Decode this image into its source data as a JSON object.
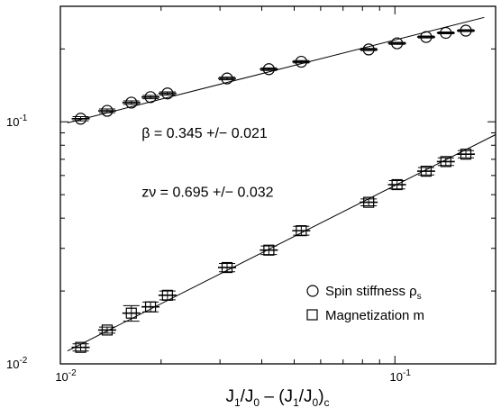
{
  "chart_data": {
    "type": "scatter",
    "x_scale": "log",
    "y_scale": "log",
    "xlim": [
      0.01,
      0.2
    ],
    "ylim": [
      0.01,
      0.3
    ],
    "grid": false,
    "legend_position": "bottom-right",
    "xlabel": {
      "parts": [
        {
          "t": "J"
        },
        {
          "t": "1",
          "sub": true
        },
        {
          "t": "/J"
        },
        {
          "t": "0",
          "sub": true
        },
        {
          "t": " – (J"
        },
        {
          "t": "1",
          "sub": true
        },
        {
          "t": "/J"
        },
        {
          "t": "0",
          "sub": true
        },
        {
          "t": ")"
        },
        {
          "t": "c",
          "sub": true
        }
      ]
    },
    "x_ticks": [
      {
        "value": 0.01,
        "base": "10",
        "exp": "-2"
      },
      {
        "value": 0.1,
        "base": "10",
        "exp": "-1"
      }
    ],
    "y_ticks": [
      {
        "value": 0.01,
        "base": "10",
        "exp": "-2"
      },
      {
        "value": 0.1,
        "base": "10",
        "exp": "-1"
      }
    ],
    "annotations": [
      {
        "id": "beta",
        "text": "β = 0.345 +/− 0.021",
        "x": 0.0175,
        "y": 0.086
      },
      {
        "id": "znu",
        "text": "zν = 0.695 +/− 0.032",
        "x": 0.0175,
        "y": 0.049
      }
    ],
    "series": [
      {
        "name": "Spin stiffness ρ",
        "name_sub": "s",
        "marker": "circle",
        "x": [
          0.0115,
          0.0138,
          0.0163,
          0.0186,
          0.0209,
          0.0315,
          0.042,
          0.0525,
          0.0835,
          0.1015,
          0.124,
          0.142,
          0.163
        ],
        "y": [
          0.103,
          0.111,
          0.12,
          0.1265,
          0.131,
          0.151,
          0.165,
          0.177,
          0.199,
          0.211,
          0.224,
          0.233,
          0.238
        ],
        "err": [
          0.002,
          0.002,
          0.002,
          0.002,
          0.002,
          0.002,
          0.002,
          0.002,
          0.002,
          0.002,
          0.002,
          0.002,
          0.002
        ],
        "fit": {
          "x": [
            0.0105,
            0.185
          ],
          "y": [
            0.099,
            0.27
          ]
        }
      },
      {
        "name": "Magnetization m",
        "marker": "square",
        "x": [
          0.0115,
          0.0138,
          0.0163,
          0.0186,
          0.0209,
          0.0315,
          0.042,
          0.0525,
          0.0835,
          0.1015,
          0.124,
          0.142,
          0.163
        ],
        "y": [
          0.0117,
          0.0138,
          0.0162,
          0.0172,
          0.0192,
          0.025,
          0.0295,
          0.0355,
          0.0465,
          0.055,
          0.0625,
          0.0685,
          0.0735
        ],
        "err": [
          0.0004,
          0.0004,
          0.0012,
          0.0008,
          0.0008,
          0.001,
          0.0012,
          0.0015,
          0.0015,
          0.0022,
          0.0022,
          0.0025,
          0.0025
        ],
        "fit": {
          "x": [
            0.0105,
            0.2
          ],
          "y": [
            0.0113,
            0.0885
          ]
        }
      }
    ]
  }
}
